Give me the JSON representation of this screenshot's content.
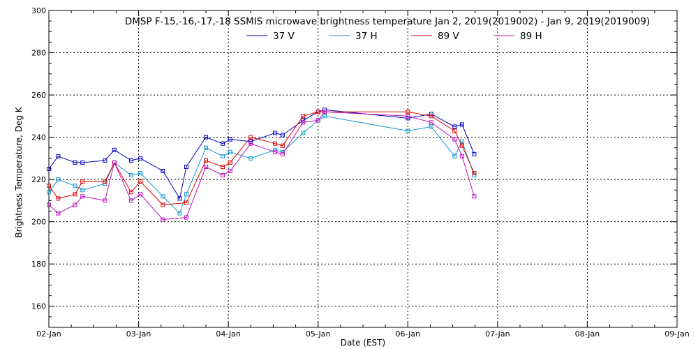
{
  "chart_data": {
    "type": "line",
    "title": "DMSP F-15,-16,-17,-18 SSMIS microwave brightness temperature Jan  2, 2019(2019002) - Jan  9, 2019(2019009)",
    "xlabel": "Date (EST)",
    "ylabel": "Brightness Temperature, Deg K",
    "xlim": [
      "2019-01-02T00:00",
      "2019-01-09T00:00"
    ],
    "ylim": [
      150,
      300
    ],
    "x_ticks": [
      "02-Jan",
      "03-Jan",
      "04-Jan",
      "05-Jan",
      "06-Jan",
      "07-Jan",
      "08-Jan",
      "09-Jan"
    ],
    "y_ticks": [
      160,
      180,
      200,
      220,
      240,
      260,
      280,
      300
    ],
    "grid": true,
    "legend_position": "top-center",
    "series": [
      {
        "name": "37 V",
        "color": "#0000bb",
        "points": [
          [
            "2019-01-02T00:00",
            225
          ],
          [
            "2019-01-02T02:30",
            231
          ],
          [
            "2019-01-02T07:00",
            228
          ],
          [
            "2019-01-02T09:00",
            228
          ],
          [
            "2019-01-02T15:00",
            229
          ],
          [
            "2019-01-02T17:30",
            234
          ],
          [
            "2019-01-02T22:00",
            229
          ],
          [
            "2019-01-03T00:30",
            230
          ],
          [
            "2019-01-03T06:30",
            224
          ],
          [
            "2019-01-03T11:00",
            211
          ],
          [
            "2019-01-03T12:45",
            226
          ],
          [
            "2019-01-03T18:00",
            240
          ],
          [
            "2019-01-03T22:30",
            237
          ],
          [
            "2019-01-04T00:30",
            239
          ],
          [
            "2019-01-04T06:00",
            238
          ],
          [
            "2019-01-04T12:30",
            242
          ],
          [
            "2019-01-04T14:30",
            241
          ],
          [
            "2019-01-04T20:00",
            248
          ],
          [
            "2019-01-05T00:00",
            252
          ],
          [
            "2019-01-05T01:45",
            253
          ],
          [
            "2019-01-06T00:00",
            249
          ],
          [
            "2019-01-06T06:15",
            251
          ],
          [
            "2019-01-06T12:30",
            245
          ],
          [
            "2019-01-06T14:30",
            246
          ],
          [
            "2019-01-06T17:45",
            232
          ]
        ]
      },
      {
        "name": "37 H",
        "color": "#1199cc",
        "points": [
          [
            "2019-01-02T00:00",
            214
          ],
          [
            "2019-01-02T02:30",
            220
          ],
          [
            "2019-01-02T07:00",
            217
          ],
          [
            "2019-01-02T09:00",
            215
          ],
          [
            "2019-01-02T15:00",
            218
          ],
          [
            "2019-01-02T17:30",
            228
          ],
          [
            "2019-01-02T22:00",
            222
          ],
          [
            "2019-01-03T00:30",
            223
          ],
          [
            "2019-01-03T06:30",
            212
          ],
          [
            "2019-01-03T11:00",
            204
          ],
          [
            "2019-01-03T12:45",
            213
          ],
          [
            "2019-01-03T18:00",
            235
          ],
          [
            "2019-01-03T22:30",
            231
          ],
          [
            "2019-01-04T00:30",
            233
          ],
          [
            "2019-01-04T06:00",
            230
          ],
          [
            "2019-01-04T12:30",
            234
          ],
          [
            "2019-01-04T14:30",
            233
          ],
          [
            "2019-01-04T20:00",
            242
          ],
          [
            "2019-01-05T00:00",
            248
          ],
          [
            "2019-01-05T01:45",
            250
          ],
          [
            "2019-01-06T00:00",
            243
          ],
          [
            "2019-01-06T06:15",
            245
          ],
          [
            "2019-01-06T12:30",
            231
          ],
          [
            "2019-01-06T14:30",
            238
          ],
          [
            "2019-01-06T17:45",
            222
          ]
        ]
      },
      {
        "name": "89 V",
        "color": "#dd0000",
        "points": [
          [
            "2019-01-02T00:00",
            217
          ],
          [
            "2019-01-02T02:30",
            211
          ],
          [
            "2019-01-02T07:00",
            213
          ],
          [
            "2019-01-02T09:00",
            219
          ],
          [
            "2019-01-02T15:00",
            219
          ],
          [
            "2019-01-02T17:30",
            228
          ],
          [
            "2019-01-02T22:00",
            214
          ],
          [
            "2019-01-03T00:30",
            219
          ],
          [
            "2019-01-03T06:30",
            208
          ],
          [
            "2019-01-03T12:45",
            209
          ],
          [
            "2019-01-03T18:00",
            229
          ],
          [
            "2019-01-03T22:30",
            226
          ],
          [
            "2019-01-04T00:30",
            228
          ],
          [
            "2019-01-04T06:00",
            240
          ],
          [
            "2019-01-04T12:30",
            237
          ],
          [
            "2019-01-04T14:30",
            236
          ],
          [
            "2019-01-04T20:00",
            250
          ],
          [
            "2019-01-05T00:00",
            252
          ],
          [
            "2019-01-05T01:45",
            252
          ],
          [
            "2019-01-06T00:00",
            252
          ],
          [
            "2019-01-06T06:15",
            250
          ],
          [
            "2019-01-06T12:30",
            243
          ],
          [
            "2019-01-06T14:30",
            236
          ],
          [
            "2019-01-06T17:45",
            223
          ]
        ]
      },
      {
        "name": "89 H",
        "color": "#bb11bb",
        "points": [
          [
            "2019-01-02T00:00",
            208
          ],
          [
            "2019-01-02T02:30",
            204
          ],
          [
            "2019-01-02T07:00",
            208
          ],
          [
            "2019-01-02T09:00",
            212
          ],
          [
            "2019-01-02T15:00",
            210
          ],
          [
            "2019-01-02T17:30",
            228
          ],
          [
            "2019-01-02T22:00",
            210
          ],
          [
            "2019-01-03T00:30",
            213
          ],
          [
            "2019-01-03T06:30",
            201
          ],
          [
            "2019-01-03T12:45",
            202
          ],
          [
            "2019-01-03T18:00",
            226
          ],
          [
            "2019-01-03T22:30",
            222
          ],
          [
            "2019-01-04T00:30",
            224
          ],
          [
            "2019-01-04T06:00",
            237
          ],
          [
            "2019-01-04T12:30",
            233
          ],
          [
            "2019-01-04T14:30",
            232
          ],
          [
            "2019-01-04T20:00",
            247
          ],
          [
            "2019-01-05T00:00",
            248
          ],
          [
            "2019-01-05T01:45",
            252
          ],
          [
            "2019-01-06T00:00",
            250
          ],
          [
            "2019-01-06T06:15",
            247
          ],
          [
            "2019-01-06T12:30",
            239
          ],
          [
            "2019-01-06T14:30",
            231
          ],
          [
            "2019-01-06T17:45",
            212
          ]
        ]
      }
    ]
  }
}
